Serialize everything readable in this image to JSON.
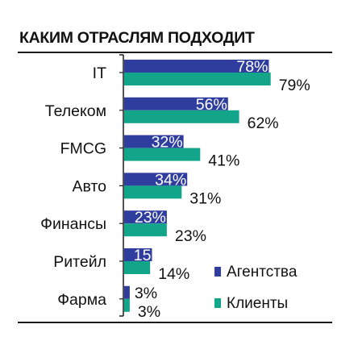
{
  "title": "КАКИМ ОТРАСЛЯМ ПОДХОДИТ",
  "colors": {
    "agencies": "#2f3d9e",
    "clients": "#12a58a"
  },
  "legend": {
    "agencies": "Агентства",
    "clients": "Клиенты"
  },
  "chart_data": {
    "type": "bar",
    "orientation": "horizontal",
    "title": "КАКИМ ОТРАСЛЯМ ПОДХОДИТ",
    "categories": [
      "IT",
      "Телеком",
      "FMCG",
      "Авто",
      "Финансы",
      "Ритейл",
      "Фарма"
    ],
    "series": [
      {
        "name": "Агентства",
        "values": [
          78,
          56,
          32,
          34,
          23,
          15,
          3
        ],
        "labels": [
          "78%",
          "56%",
          "32%",
          "34%",
          "23%",
          "15",
          "3%"
        ]
      },
      {
        "name": "Клиенты",
        "values": [
          79,
          62,
          41,
          31,
          23,
          14,
          3
        ],
        "labels": [
          "79%",
          "62%",
          "41%",
          "31%",
          "23%",
          "14%",
          "3%"
        ]
      }
    ],
    "legend_position": "bottom-right",
    "grid": false
  }
}
